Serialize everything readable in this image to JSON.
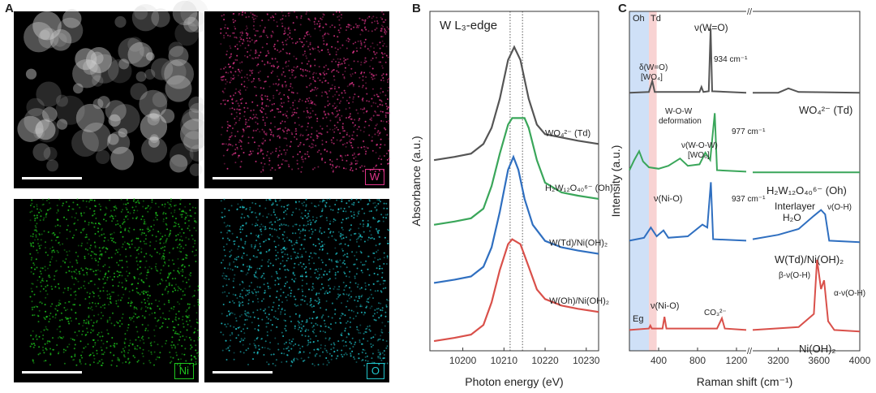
{
  "panels": {
    "a": {
      "letter": "A",
      "maps": [
        {
          "element": "",
          "color": "#cfcfcf",
          "badge_color": ""
        },
        {
          "element": "W",
          "color": "#e0348a",
          "badge_color": "#e0348a"
        },
        {
          "element": "Ni",
          "color": "#1ec81e",
          "badge_color": "#1ec81e"
        },
        {
          "element": "O",
          "color": "#1fc5cc",
          "badge_color": "#1fc5cc"
        }
      ]
    },
    "b": {
      "letter": "B"
    },
    "c": {
      "letter": "C"
    }
  },
  "chart_data": [
    {
      "type": "line",
      "title": "W L₃-edge",
      "xlabel": "Photon energy (eV)",
      "ylabel": "Absorbance (a.u.)",
      "xlim": [
        10192,
        10233
      ],
      "xticks": [
        10200,
        10210,
        10220,
        10230
      ],
      "ylim": [
        0,
        10
      ],
      "grid": false,
      "reference_lines": [
        10211.5,
        10214.5
      ],
      "series": [
        {
          "name": "WO₄²⁻ (Td)",
          "color": "#555555",
          "label_x": 10220,
          "points": [
            [
              10193,
              5.9
            ],
            [
              10198,
              6.0
            ],
            [
              10202,
              6.1
            ],
            [
              10205,
              6.4
            ],
            [
              10207,
              6.9
            ],
            [
              10209,
              7.8
            ],
            [
              10211,
              9.0
            ],
            [
              10212.5,
              9.4
            ],
            [
              10214,
              9.0
            ],
            [
              10216,
              7.8
            ],
            [
              10218,
              7.0
            ],
            [
              10220,
              6.7
            ],
            [
              10224,
              6.6
            ],
            [
              10228,
              6.5
            ],
            [
              10233,
              6.4
            ]
          ]
        },
        {
          "name": "H₂W₁₂O₄₀⁶⁻ (Oh)",
          "color": "#3aa65a",
          "label_x": 10220,
          "points": [
            [
              10193,
              3.9
            ],
            [
              10198,
              4.0
            ],
            [
              10202,
              4.1
            ],
            [
              10205,
              4.4
            ],
            [
              10207,
              5.1
            ],
            [
              10209,
              6.1
            ],
            [
              10211,
              7.0
            ],
            [
              10212,
              7.2
            ],
            [
              10215,
              7.2
            ],
            [
              10216,
              6.9
            ],
            [
              10218,
              5.9
            ],
            [
              10220,
              5.2
            ],
            [
              10224,
              4.9
            ],
            [
              10228,
              4.8
            ],
            [
              10233,
              4.7
            ]
          ]
        },
        {
          "name": "W(Td)/Ni(OH)₂",
          "color": "#2f6fc0",
          "label_x": 10221,
          "points": [
            [
              10193,
              2.1
            ],
            [
              10198,
              2.2
            ],
            [
              10202,
              2.3
            ],
            [
              10205,
              2.6
            ],
            [
              10207,
              3.2
            ],
            [
              10209,
              4.3
            ],
            [
              10211,
              5.6
            ],
            [
              10212.3,
              6.0
            ],
            [
              10213.5,
              5.6
            ],
            [
              10215,
              4.7
            ],
            [
              10217,
              3.9
            ],
            [
              10220,
              3.4
            ],
            [
              10224,
              3.2
            ],
            [
              10228,
              3.1
            ],
            [
              10233,
              3.0
            ]
          ]
        },
        {
          "name": "W(Oh)/Ni(OH)₂",
          "color": "#d9504a",
          "label_x": 10221,
          "points": [
            [
              10193,
              0.3
            ],
            [
              10198,
              0.4
            ],
            [
              10202,
              0.5
            ],
            [
              10205,
              0.8
            ],
            [
              10207,
              1.5
            ],
            [
              10209,
              2.5
            ],
            [
              10211,
              3.3
            ],
            [
              10212,
              3.45
            ],
            [
              10214,
              3.3
            ],
            [
              10216,
              2.6
            ],
            [
              10218,
              1.9
            ],
            [
              10220,
              1.6
            ],
            [
              10224,
              1.4
            ],
            [
              10228,
              1.3
            ],
            [
              10233,
              1.2
            ]
          ]
        }
      ]
    },
    {
      "type": "line",
      "xlabel": "Raman shift (cm⁻¹)",
      "ylabel": "Intensity (a.u.)",
      "xticks": [
        "400",
        "800",
        "1200",
        "3200",
        "3600",
        "4000"
      ],
      "axis_break": "//",
      "segments": [
        {
          "xlim": [
            100,
            1300
          ]
        },
        {
          "xlim": [
            2950,
            4000
          ]
        }
      ],
      "grid": false,
      "shaded_regions": [
        {
          "label": "Oh",
          "range": [
            100,
            300
          ],
          "color": "#cfe0f7"
        },
        {
          "label": "Td",
          "range": [
            300,
            380
          ],
          "color": "#f8d3d3"
        }
      ],
      "series": [
        {
          "name": "WO₄²⁻ (Td)",
          "color": "#555555",
          "points": [
            [
              100,
              0.1
            ],
            [
              300,
              0.15
            ],
            [
              335,
              0.9
            ],
            [
              360,
              0.15
            ],
            [
              820,
              0.15
            ],
            [
              840,
              0.5
            ],
            [
              860,
              0.15
            ],
            [
              915,
              0.2
            ],
            [
              934,
              4.5
            ],
            [
              950,
              0.2
            ],
            [
              1300,
              0.1
            ],
            [
              2950,
              0.1
            ],
            [
              3200,
              0.1
            ],
            [
              3300,
              0.4
            ],
            [
              3400,
              0.15
            ],
            [
              4000,
              0.1
            ]
          ]
        },
        {
          "name": "H₂W₁₂O₄₀⁶⁻ (Oh)",
          "color": "#3aa65a",
          "points": [
            [
              100,
              0.3
            ],
            [
              150,
              1.0
            ],
            [
              200,
              1.6
            ],
            [
              240,
              0.9
            ],
            [
              300,
              0.5
            ],
            [
              400,
              0.4
            ],
            [
              500,
              0.6
            ],
            [
              620,
              1.1
            ],
            [
              700,
              0.6
            ],
            [
              820,
              0.7
            ],
            [
              880,
              1.5
            ],
            [
              930,
              1.0
            ],
            [
              977,
              4.2
            ],
            [
              1000,
              0.3
            ],
            [
              1300,
              0.2
            ],
            [
              2950,
              0.15
            ],
            [
              4000,
              0.15
            ]
          ]
        },
        {
          "name": "W(Td)/Ni(OH)₂",
          "color": "#2f6fc0",
          "points": [
            [
              100,
              0.2
            ],
            [
              250,
              0.4
            ],
            [
              320,
              1.1
            ],
            [
              380,
              0.5
            ],
            [
              450,
              0.9
            ],
            [
              500,
              0.4
            ],
            [
              700,
              0.5
            ],
            [
              850,
              1.3
            ],
            [
              900,
              1.1
            ],
            [
              937,
              4.2
            ],
            [
              960,
              0.3
            ],
            [
              1300,
              0.2
            ],
            [
              2950,
              0.3
            ],
            [
              3200,
              0.6
            ],
            [
              3400,
              1.0
            ],
            [
              3550,
              1.9
            ],
            [
              3620,
              2.3
            ],
            [
              3660,
              2.0
            ],
            [
              3700,
              0.2
            ],
            [
              4000,
              0.1
            ]
          ]
        },
        {
          "name": "Ni(OH)₂",
          "color": "#d9504a",
          "points": [
            [
              100,
              0.2
            ],
            [
              300,
              0.3
            ],
            [
              315,
              0.5
            ],
            [
              330,
              0.3
            ],
            [
              440,
              0.3
            ],
            [
              460,
              1.1
            ],
            [
              480,
              0.3
            ],
            [
              1000,
              0.3
            ],
            [
              1050,
              1.0
            ],
            [
              1080,
              0.3
            ],
            [
              1300,
              0.2
            ],
            [
              2950,
              0.2
            ],
            [
              3400,
              0.4
            ],
            [
              3550,
              1.3
            ],
            [
              3581,
              5.0
            ],
            [
              3620,
              3.0
            ],
            [
              3650,
              3.6
            ],
            [
              3690,
              0.8
            ],
            [
              3750,
              0.2
            ],
            [
              4000,
              0.1
            ]
          ]
        }
      ],
      "annotations": {
        "oh": "Oh",
        "td": "Td",
        "nu_w_o": "ν(W=O)",
        "delta_w_o": "δ(W=O)",
        "wo4": "[WO₄]",
        "peak_934": "934 cm⁻¹",
        "w_o_w": "W-O-W",
        "deformation": "deformation",
        "peak_977": "977 cm⁻¹",
        "nu_wow": "ν(W-O-W)",
        "wo6": "[WO₆]",
        "nu_nio_blue": "ν(Ni-O)",
        "peak_937": "937 cm⁻¹",
        "interlayer": "Interlayer",
        "h2o": "H₂O",
        "nu_oh": "ν(O-H)",
        "beta_oh": "β-ν(O-H)",
        "alpha_oh": "α-ν(O-H)",
        "eg": "Eg",
        "nu_nio_red": "ν(Ni-O)",
        "co3": "CO₃²⁻"
      }
    }
  ]
}
